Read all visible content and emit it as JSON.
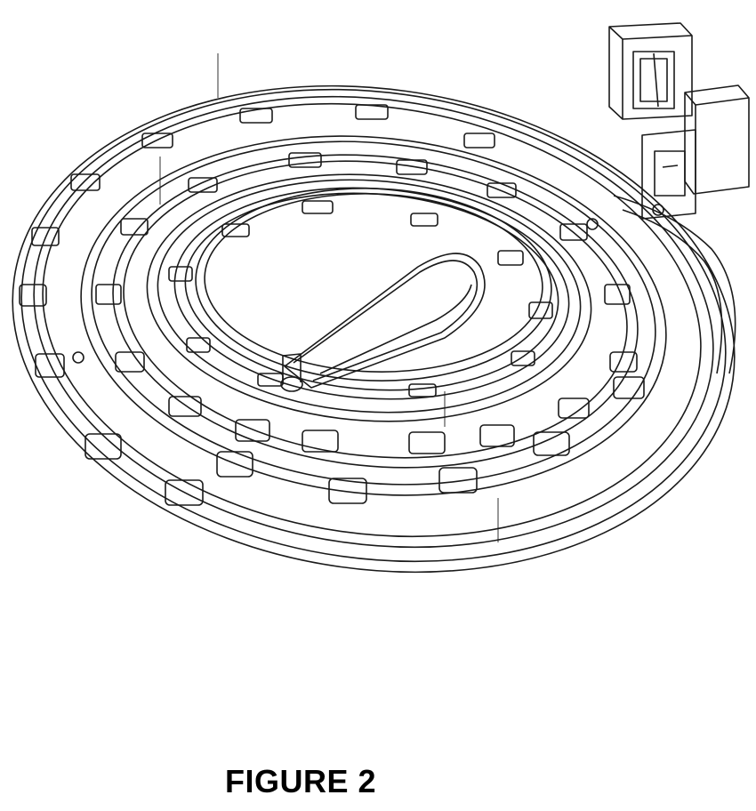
{
  "figure": {
    "caption": "FIGURE 2",
    "line_color": "#1a1a1a",
    "background_color": "#ffffff"
  },
  "components": {
    "spiral_track": "spiral-belt-track",
    "connector_blocks": 2,
    "slot_rows": 3
  }
}
